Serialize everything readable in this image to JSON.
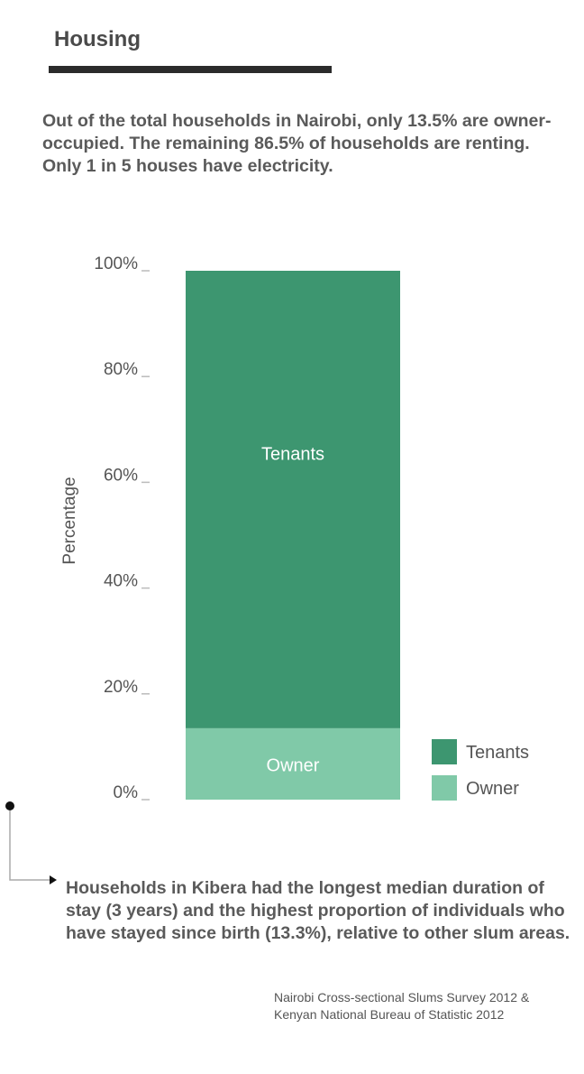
{
  "header": {
    "title": "Housing"
  },
  "intro": "Out of the total households in Nairobi, only 13.5% are owner-occupied. The remaining 86.5% of households are renting. Only 1 in 5 houses have electricity.",
  "chart_data": {
    "type": "bar",
    "stacked": true,
    "categories": [
      ""
    ],
    "series": [
      {
        "name": "Owner",
        "values": [
          13.5
        ],
        "color": "#80c9a8"
      },
      {
        "name": "Tenants",
        "values": [
          86.5
        ],
        "color": "#3d9670"
      }
    ],
    "ylabel": "Percentage",
    "xlabel": "",
    "ylim": [
      0,
      100
    ],
    "yticks": [
      0,
      20,
      40,
      60,
      80,
      100
    ],
    "ytick_labels": [
      "0%",
      "20%",
      "40%",
      "60%",
      "80%",
      "100%"
    ],
    "legend": {
      "placement": "bottom-right",
      "order": [
        "Tenants",
        "Owner"
      ]
    },
    "grid": false
  },
  "note": "Households in Kibera had the longest median duration of stay (3 years) and the highest proportion of individuals who have stayed since birth (13.3%), relative to other slum areas.",
  "source": {
    "line1": "Nairobi Cross-sectional Slums Survey 2012 &",
    "line2": "Kenyan National Bureau of Statistic 2012"
  },
  "colors": {
    "title_rule": "#2b2b2b",
    "axis_tick": "#bbbbbb",
    "annotation_line": "#aaaaaa"
  }
}
